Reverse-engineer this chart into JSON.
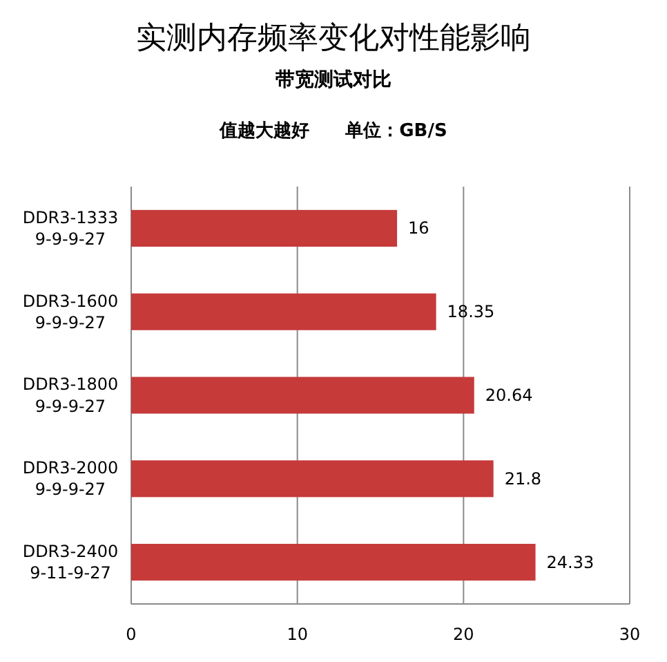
{
  "chart_data": {
    "type": "bar",
    "orientation": "horizontal",
    "title": "实测内存频率变化对性能影响",
    "subtitle": "带宽测试对比",
    "annotations": [
      "值越大越好　　单位：GB/S"
    ],
    "categories": [
      "DDR3-1333\n9-9-9-27",
      "DDR3-1600\n9-9-9-27",
      "DDR3-1800\n9-9-9-27",
      "DDR3-2000\n9-9-9-27",
      "DDR3-2400\n9-11-9-27"
    ],
    "values": [
      16,
      18.35,
      20.64,
      21.8,
      24.33
    ],
    "color": "#c63a3a",
    "xlim": [
      0,
      30
    ],
    "xticks": [
      0,
      10,
      20,
      30
    ],
    "grid": "x",
    "data_labels": true
  }
}
